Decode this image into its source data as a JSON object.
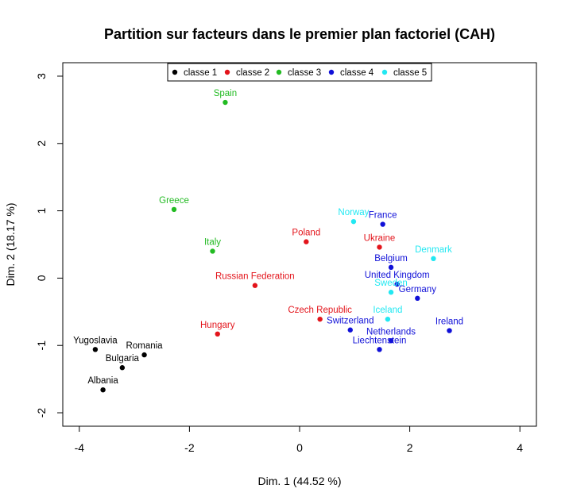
{
  "chart_data": {
    "type": "scatter",
    "title": "Partition sur facteurs dans le premier plan factoriel (CAH)",
    "xlabel": "Dim. 1 (44.52 %)",
    "ylabel": "Dim. 2 (18.17 %)",
    "xlim": [
      -4.3,
      4.3
    ],
    "ylim": [
      -2.2,
      3.2
    ],
    "xticks": [
      -4,
      -2,
      0,
      2,
      4
    ],
    "yticks": [
      -2,
      -1,
      0,
      1,
      2,
      3
    ],
    "grid": false,
    "legend_position": "top",
    "classes": [
      {
        "name": "classe 1",
        "color": "#000000"
      },
      {
        "name": "classe 2",
        "color": "#e3141b"
      },
      {
        "name": "classe 3",
        "color": "#22bb22"
      },
      {
        "name": "classe 4",
        "color": "#1010d8"
      },
      {
        "name": "classe 5",
        "color": "#22e8f2"
      }
    ],
    "points": [
      {
        "label": "Yugoslavia",
        "x": -3.71,
        "y": -1.06,
        "class": 0
      },
      {
        "label": "Romania",
        "x": -2.82,
        "y": -1.14,
        "class": 0
      },
      {
        "label": "Bulgaria",
        "x": -3.22,
        "y": -1.33,
        "class": 0
      },
      {
        "label": "Albania",
        "x": -3.57,
        "y": -1.66,
        "class": 0
      },
      {
        "label": "Poland",
        "x": 0.12,
        "y": 0.54,
        "class": 1
      },
      {
        "label": "Ukraine",
        "x": 1.45,
        "y": 0.46,
        "class": 1
      },
      {
        "label": "Russian Federation",
        "x": -0.81,
        "y": -0.11,
        "class": 1
      },
      {
        "label": "Czech Republic",
        "x": 0.37,
        "y": -0.61,
        "class": 1
      },
      {
        "label": "Hungary",
        "x": -1.49,
        "y": -0.83,
        "class": 1
      },
      {
        "label": "Spain",
        "x": -1.35,
        "y": 2.61,
        "class": 2
      },
      {
        "label": "Greece",
        "x": -2.28,
        "y": 1.02,
        "class": 2
      },
      {
        "label": "Italy",
        "x": -1.58,
        "y": 0.4,
        "class": 2
      },
      {
        "label": "France",
        "x": 1.51,
        "y": 0.8,
        "class": 3
      },
      {
        "label": "Belgium",
        "x": 1.66,
        "y": 0.16,
        "class": 3
      },
      {
        "label": "United Kingdom",
        "x": 1.77,
        "y": -0.09,
        "class": 3
      },
      {
        "label": "Germany",
        "x": 2.14,
        "y": -0.3,
        "class": 3
      },
      {
        "label": "Switzerland",
        "x": 0.92,
        "y": -0.77,
        "class": 3
      },
      {
        "label": "Netherlands",
        "x": 1.66,
        "y": -0.93,
        "class": 3
      },
      {
        "label": "Liechtenstein",
        "x": 1.45,
        "y": -1.06,
        "class": 3
      },
      {
        "label": "Ireland",
        "x": 2.72,
        "y": -0.78,
        "class": 3
      },
      {
        "label": "Norway",
        "x": 0.98,
        "y": 0.84,
        "class": 4
      },
      {
        "label": "Denmark",
        "x": 2.43,
        "y": 0.29,
        "class": 4
      },
      {
        "label": "Sweden",
        "x": 1.66,
        "y": -0.21,
        "class": 4
      },
      {
        "label": "Iceland",
        "x": 1.6,
        "y": -0.61,
        "class": 4
      }
    ]
  }
}
